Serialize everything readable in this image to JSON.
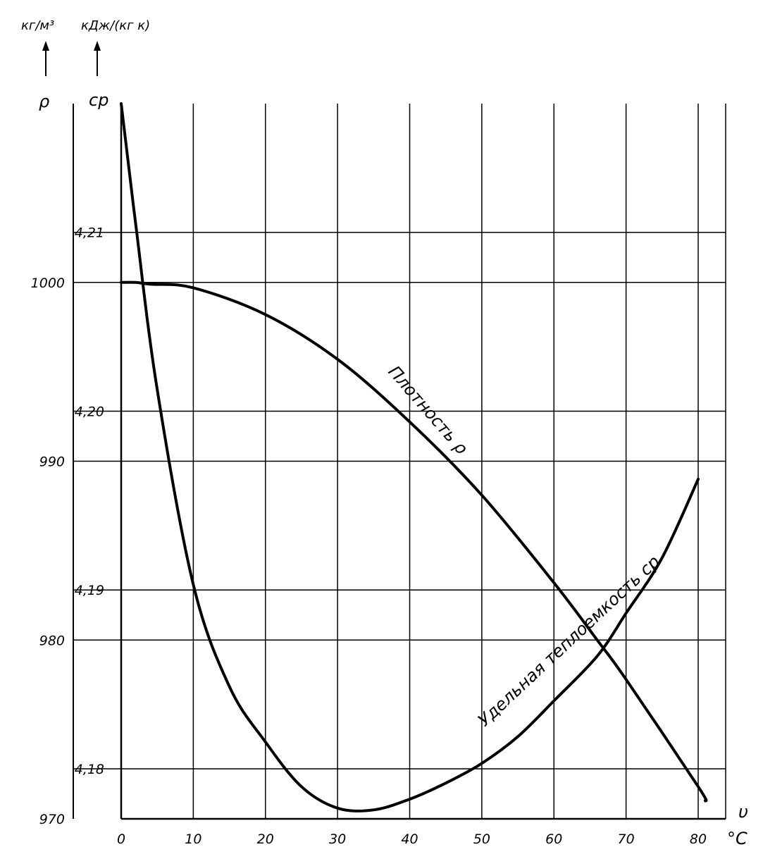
{
  "chart_data": {
    "type": "line",
    "xlabel": "υ",
    "x_unit": "°C",
    "x_ticks": [
      0,
      10,
      20,
      30,
      40,
      50,
      60,
      70,
      80
    ],
    "x_tick_labels": [
      "0",
      "10",
      "20",
      "30",
      "40",
      "50",
      "60",
      "70",
      "80"
    ],
    "xlim": [
      0,
      80
    ],
    "grid": true,
    "axes": {
      "rho": {
        "symbol": "ρ",
        "unit": "кг/м³",
        "range": [
          970,
          1010
        ],
        "ticks": [
          970,
          980,
          990,
          1000
        ],
        "tick_labels": [
          "970",
          "980",
          "990",
          "1000"
        ]
      },
      "cp": {
        "symbol": "cp",
        "unit": "кДж/(кг к)",
        "range": [
          4.1772,
          4.2172
        ],
        "ticks": [
          4.18,
          4.19,
          4.2,
          4.21
        ],
        "tick_labels": [
          "4,18",
          "4,19",
          "4,20",
          "4,21"
        ]
      }
    },
    "series": [
      {
        "name": "Плотность ρ",
        "axis": "rho",
        "x": [
          0,
          2,
          4,
          10,
          20,
          30,
          40,
          50,
          60,
          66,
          70,
          80,
          81
        ],
        "values": [
          1000,
          1000,
          999.9,
          999.7,
          998.2,
          995.7,
          992.2,
          988.1,
          983.2,
          980.0,
          977.8,
          971.8,
          971.0
        ]
      },
      {
        "name": "Удельная теплоемкость cp",
        "axis": "cp",
        "x": [
          0,
          2,
          5,
          10,
          15,
          20,
          25,
          30,
          35,
          40,
          45,
          50,
          55,
          60,
          66,
          70,
          75,
          80
        ],
        "values": [
          4.2172,
          4.2105,
          4.2012,
          4.1903,
          4.1846,
          4.1815,
          4.179,
          4.1778,
          4.1777,
          4.1783,
          4.1792,
          4.1803,
          4.1818,
          4.1838,
          4.1863,
          4.1887,
          4.1918,
          4.1962
        ]
      }
    ]
  }
}
